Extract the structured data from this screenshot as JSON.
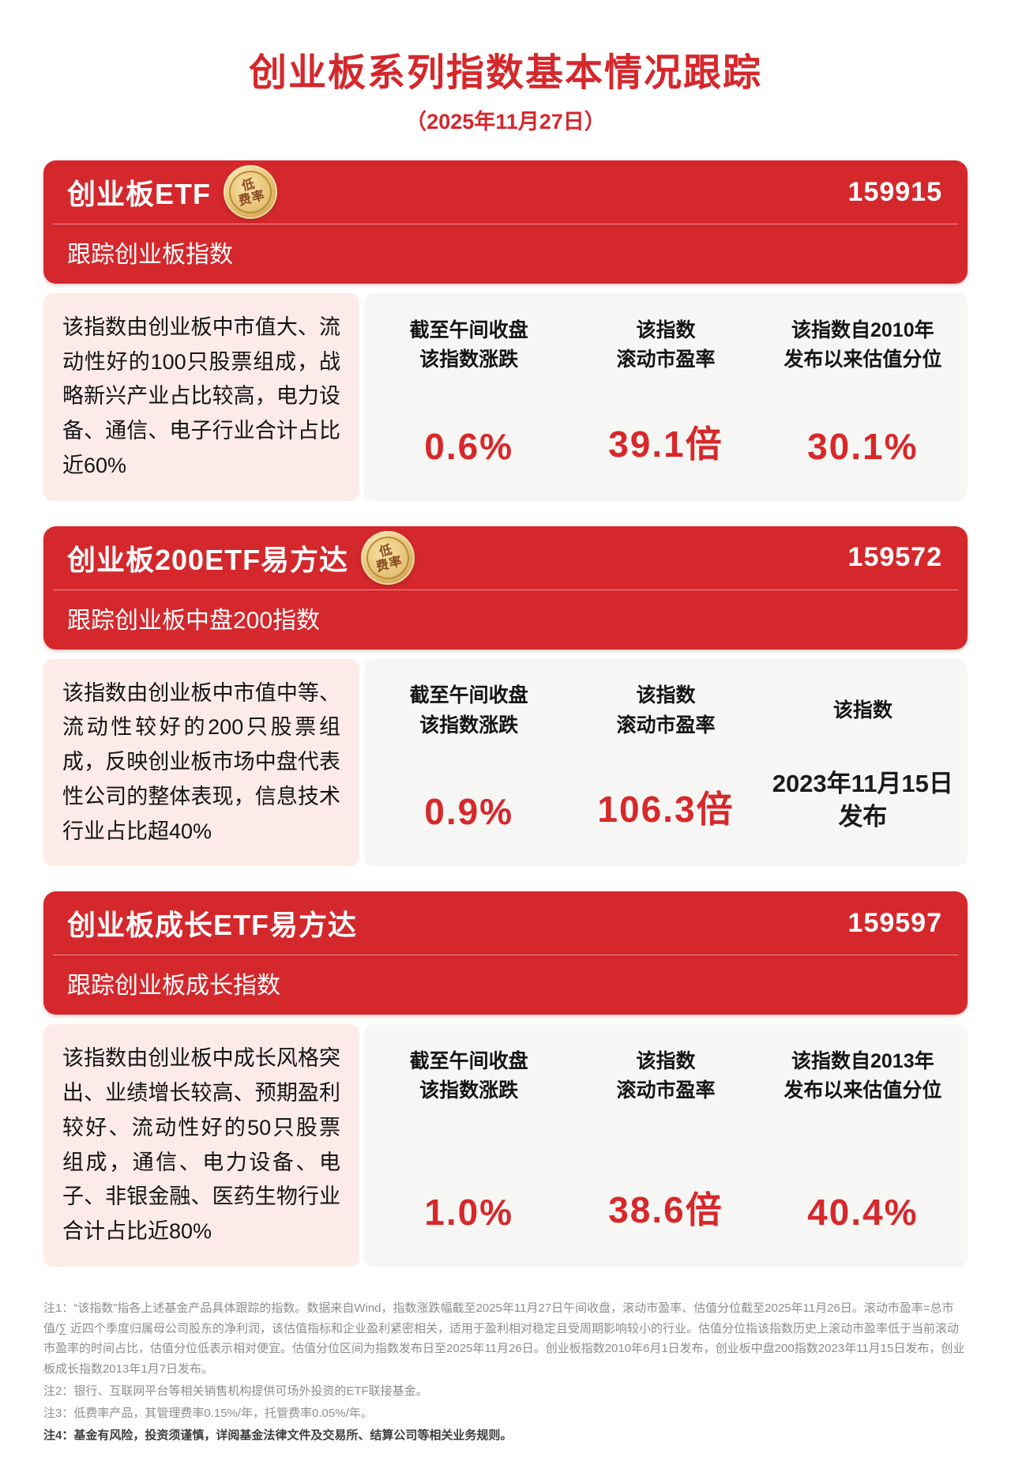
{
  "header": {
    "title": "创业板系列指数基本情况跟踪",
    "date": "（2025年11月27日）"
  },
  "badge": {
    "line1": "低",
    "line2": "费率"
  },
  "colors": {
    "primary_red": "#d4282d",
    "value_red": "#d7282a",
    "desc_pink": "#fcebe8",
    "stats_gray": "#f6f6f5",
    "badge_gold": "#e9c97e"
  },
  "cards": [
    {
      "name": "创业板ETF",
      "code": "159915",
      "subtitle": "跟踪创业板指数",
      "description": "该指数由创业板中市值大、流动性好的100只股票组成，战略新兴产业占比较高，电力设备、通信、电子行业合计占比近60%",
      "stats": [
        {
          "label": "截至午间收盘\n该指数涨跌",
          "value": "0.6%",
          "variant": "red"
        },
        {
          "label": "该指数\n滚动市盈率",
          "value": "39.1倍",
          "variant": "red"
        },
        {
          "label": "该指数自2010年\n发布以来估值分位",
          "value": "30.1%",
          "variant": "red"
        }
      ]
    },
    {
      "name": "创业板200ETF易方达",
      "code": "159572",
      "subtitle": "跟踪创业板中盘200指数",
      "description": "该指数由创业板中市值中等、流动性较好的200只股票组成，反映创业板市场中盘代表性公司的整体表现，信息技术行业占比超40%",
      "stats": [
        {
          "label": "截至午间收盘\n该指数涨跌",
          "value": "0.9%",
          "variant": "red"
        },
        {
          "label": "该指数\n滚动市盈率",
          "value": "106.3倍",
          "variant": "red"
        },
        {
          "label": "该指数",
          "value": "2023年11月15日\n发布",
          "variant": "date"
        }
      ]
    },
    {
      "name": "创业板成长ETF易方达",
      "code": "159597",
      "subtitle": "跟踪创业板成长指数",
      "description": "该指数由创业板中成长风格突出、业绩增长较高、预期盈利较好、流动性好的50只股票组成，通信、电力设备、电子、非银金融、医药生物行业合计占比近80%",
      "stats": [
        {
          "label": "截至午间收盘\n该指数涨跌",
          "value": "1.0%",
          "variant": "red"
        },
        {
          "label": "该指数\n滚动市盈率",
          "value": "38.6倍",
          "variant": "red"
        },
        {
          "label": "该指数自2013年\n发布以来估值分位",
          "value": "40.4%",
          "variant": "red"
        }
      ]
    }
  ],
  "notes": [
    "注1：“该指数”指各上述基金产品具体跟踪的指数。数据来自Wind，指数涨跌幅截至2025年11月27日午间收盘，滚动市盈率、估值分位截至2025年11月26日。滚动市盈率=总市值/∑ 近四个季度归属母公司股东的净利润，该估值指标和企业盈利紧密相关，适用于盈利相对稳定且受周期影响较小的行业。估值分位指该指数历史上滚动市盈率低于当前滚动市盈率的时间占比，估值分位低表示相对便宜。估值分位区间为指数发布日至2025年11月26日。创业板指数2010年6月1日发布，创业板中盘200指数2023年11月15日发布，创业板成长指数2013年1月7日发布。",
    "注2：银行、互联网平台等相关销售机构提供可场外投资的ETF联接基金。",
    "注3：低费率产品，其管理费率0.15%/年，托管费率0.05%/年。",
    "注4：基金有风险，投资须谨慎，详阅基金法律文件及交易所、结算公司等相关业务规则。"
  ]
}
